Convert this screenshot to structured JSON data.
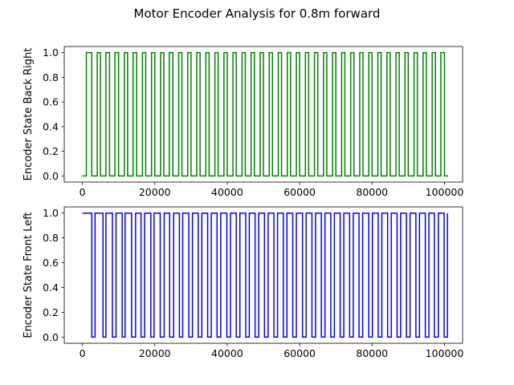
{
  "figure": {
    "suptitle": "Motor Encoder Analysis for 0.8m forward"
  },
  "chart_data": [
    {
      "type": "line",
      "step": true,
      "title": "",
      "xlabel": "",
      "ylabel": "Encoder State Back Right",
      "color": "#008000",
      "xlim": [
        -5000,
        105000
      ],
      "ylim": [
        -0.05,
        1.05
      ],
      "xticks": [
        0,
        20000,
        40000,
        60000,
        80000,
        100000
      ],
      "yticks": [
        0.0,
        0.2,
        0.4,
        0.6,
        0.8,
        1.0
      ],
      "ytick_labels": [
        "0.0",
        "0.2",
        "0.4",
        "0.6",
        "0.8",
        "1.0"
      ],
      "grid": false,
      "initial_state": 0,
      "x_start": 0,
      "x_end": 101000,
      "x": [
        0,
        1100,
        2600,
        4100,
        5000,
        6500,
        7500,
        9000,
        10000,
        11600,
        12500,
        14000,
        15000,
        16600,
        17500,
        19100,
        20000,
        21600,
        22500,
        24000,
        25000,
        26600,
        27500,
        29100,
        30000,
        31600,
        32500,
        34100,
        35000,
        36600,
        37500,
        39100,
        40000,
        41600,
        42500,
        44100,
        45000,
        46600,
        47500,
        49100,
        50000,
        51600,
        52500,
        54100,
        55000,
        56600,
        57500,
        59100,
        60000,
        61600,
        62500,
        64100,
        65000,
        66600,
        67500,
        69100,
        70000,
        71600,
        72500,
        74100,
        75000,
        76600,
        77500,
        79100,
        80000,
        81600,
        82500,
        84100,
        85000,
        86600,
        87500,
        89100,
        90000,
        91600,
        92500,
        94100,
        95000,
        96600,
        97500,
        99000,
        100000,
        101000
      ],
      "y": [
        0,
        1,
        0,
        1,
        0,
        1,
        0,
        1,
        0,
        1,
        0,
        1,
        0,
        1,
        0,
        1,
        0,
        1,
        0,
        1,
        0,
        1,
        0,
        1,
        0,
        1,
        0,
        1,
        0,
        1,
        0,
        1,
        0,
        1,
        0,
        1,
        0,
        1,
        0,
        1,
        0,
        1,
        0,
        1,
        0,
        1,
        0,
        1,
        0,
        1,
        0,
        1,
        0,
        1,
        0,
        1,
        0,
        1,
        0,
        1,
        0,
        1,
        0,
        1,
        0,
        1,
        0,
        1,
        0,
        1,
        0,
        1,
        0,
        1,
        0,
        1,
        0,
        1,
        0,
        1,
        0,
        0
      ]
    },
    {
      "type": "line",
      "step": true,
      "title": "",
      "xlabel": "",
      "ylabel": "Encoder State Front Left",
      "color": "#0000ff",
      "xlim": [
        -5000,
        105000
      ],
      "ylim": [
        -0.05,
        1.05
      ],
      "xticks": [
        0,
        20000,
        40000,
        60000,
        80000,
        100000
      ],
      "yticks": [
        0.0,
        0.2,
        0.4,
        0.6,
        0.8,
        1.0
      ],
      "ytick_labels": [
        "0.0",
        "0.2",
        "0.4",
        "0.6",
        "0.8",
        "1.0"
      ],
      "grid": false,
      "initial_state": 1,
      "x_start": 0,
      "x_end": 100800,
      "x": [
        0,
        2600,
        3500,
        5700,
        6500,
        8300,
        9300,
        11000,
        11800,
        13600,
        14700,
        16200,
        17200,
        18900,
        19800,
        21500,
        22600,
        24100,
        25200,
        26800,
        27700,
        29400,
        30400,
        32000,
        33000,
        34600,
        35600,
        37200,
        38200,
        39900,
        40900,
        42500,
        43500,
        45100,
        46100,
        47700,
        48700,
        50300,
        51300,
        52900,
        53900,
        55500,
        56500,
        58100,
        59100,
        60800,
        61800,
        63400,
        64400,
        66000,
        67000,
        68600,
        69600,
        71200,
        72200,
        73800,
        74800,
        76400,
        77400,
        79100,
        80100,
        81700,
        82700,
        84300,
        85300,
        86900,
        87900,
        89500,
        90500,
        92100,
        93100,
        94700,
        95700,
        97200,
        98300,
        99900,
        100800
      ],
      "y": [
        1,
        0,
        1,
        0,
        1,
        0,
        1,
        0,
        1,
        0,
        1,
        0,
        1,
        0,
        1,
        0,
        1,
        0,
        1,
        0,
        1,
        0,
        1,
        0,
        1,
        0,
        1,
        0,
        1,
        0,
        1,
        0,
        1,
        0,
        1,
        0,
        1,
        0,
        1,
        0,
        1,
        0,
        1,
        0,
        1,
        0,
        1,
        0,
        1,
        0,
        1,
        0,
        1,
        0,
        1,
        0,
        1,
        0,
        1,
        0,
        1,
        0,
        1,
        0,
        1,
        0,
        1,
        0,
        1,
        0,
        1,
        0,
        1,
        0,
        1,
        0,
        1
      ]
    }
  ]
}
